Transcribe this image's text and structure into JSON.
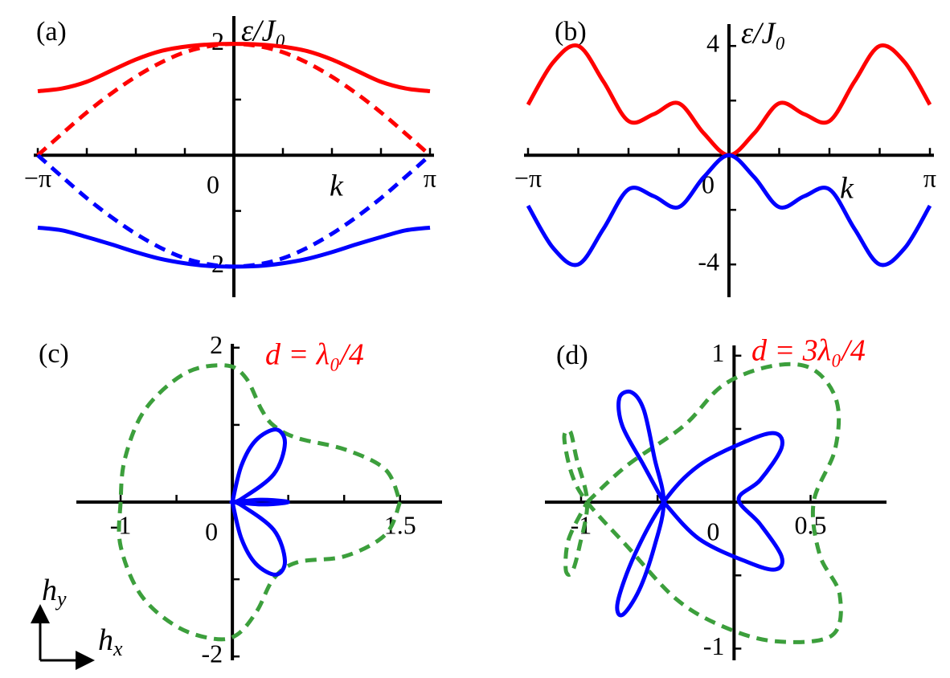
{
  "chart_data": [
    {
      "type": "line",
      "label": "(a)",
      "xlabel": "k",
      "ylabel": "ε/J₀",
      "x": [
        -3.1416,
        -2.7489,
        -2.3562,
        -1.9635,
        -1.5708,
        -1.1781,
        -0.7854,
        -0.3927,
        0,
        0.3927,
        0.7854,
        1.1781,
        1.5708,
        1.9635,
        2.3562,
        2.7489,
        3.1416
      ],
      "xlim": [
        -3.1416,
        3.1416
      ],
      "ylim": [
        -2.55,
        2.5
      ],
      "xticks": [
        {
          "value": -3.1416,
          "label": "−π"
        },
        0,
        {
          "value": 3.1416,
          "label": "π"
        }
      ],
      "xminorticks": [
        -2.3562,
        -1.5708,
        -0.7854,
        0.7854,
        1.5708,
        2.3562
      ],
      "yticks": [
        -2,
        2
      ],
      "yminorticks": [
        -1,
        1
      ],
      "series": [
        {
          "color": "#ff0000",
          "dashed": false,
          "values": [
            1.15,
            1.2,
            1.32,
            1.52,
            1.72,
            1.87,
            1.95,
            1.99,
            2,
            1.99,
            1.95,
            1.87,
            1.72,
            1.52,
            1.32,
            1.2,
            1.15
          ]
        },
        {
          "color": "#ff0000",
          "dashed": true,
          "values": [
            0,
            0.39,
            0.77,
            1.11,
            1.41,
            1.66,
            1.85,
            1.96,
            2,
            1.96,
            1.85,
            1.66,
            1.41,
            1.11,
            0.77,
            0.39,
            0
          ]
        },
        {
          "color": "#0000ff",
          "dashed": false,
          "values": [
            -1.3,
            -1.35,
            -1.47,
            -1.6,
            -1.74,
            -1.86,
            -1.94,
            -1.99,
            -2,
            -1.99,
            -1.94,
            -1.86,
            -1.74,
            -1.6,
            -1.47,
            -1.35,
            -1.3
          ]
        },
        {
          "color": "#0000ff",
          "dashed": true,
          "values": [
            0,
            -0.39,
            -0.77,
            -1.11,
            -1.41,
            -1.66,
            -1.85,
            -1.96,
            -2,
            -1.96,
            -1.85,
            -1.66,
            -1.41,
            -1.11,
            -0.77,
            -0.39,
            0
          ]
        }
      ]
    },
    {
      "type": "line",
      "label": "(b)",
      "xlabel": "k",
      "ylabel": "ε/J₀",
      "x": [
        -3.1416,
        -2.7489,
        -2.3562,
        -1.9635,
        -1.5708,
        -1.1781,
        -0.7854,
        -0.3927,
        0,
        0.3927,
        0.7854,
        1.1781,
        1.5708,
        1.9635,
        2.3562,
        2.7489,
        3.1416
      ],
      "xlim": [
        -3.1416,
        3.1416
      ],
      "ylim": [
        -5.2,
        4.8
      ],
      "xticks": [
        {
          "value": -3.1416,
          "label": "−π"
        },
        0,
        {
          "value": 3.1416,
          "label": "π"
        }
      ],
      "xminorticks": [
        -2.3562,
        -1.5708,
        -0.7854,
        0.7854,
        1.5708,
        2.3562
      ],
      "yticks": [
        -4,
        4
      ],
      "yminorticks": [
        -2,
        2
      ],
      "series": [
        {
          "color": "#ff0000",
          "dashed": false,
          "values": [
            1.85,
            3.4,
            4.0,
            2.7,
            1.25,
            1.5,
            1.9,
            0.8,
            0,
            0.8,
            1.9,
            1.5,
            1.25,
            2.7,
            4.0,
            3.4,
            1.85
          ]
        },
        {
          "color": "#0000ff",
          "dashed": false,
          "values": [
            -1.85,
            -3.4,
            -4.0,
            -2.7,
            -1.25,
            -1.5,
            -1.9,
            -0.8,
            0,
            -0.8,
            -1.9,
            -1.5,
            -1.25,
            -2.7,
            -4.0,
            -3.4,
            -1.85
          ]
        }
      ]
    },
    {
      "type": "curve",
      "label": "(c)",
      "annotation": "d = λ₀/4",
      "annotation_color": "#ff0000",
      "xlim": [
        -1.36,
        1.84
      ],
      "ylim": [
        -2.05,
        2.05
      ],
      "xticks": [
        -1,
        0,
        1.5
      ],
      "xminorticks": [
        -0.5,
        0.5,
        1
      ],
      "yticks": [
        -2,
        2
      ],
      "yminorticks": [
        -1,
        1
      ],
      "series": [
        {
          "color": "#3c9f3c",
          "dashed": true,
          "x": [
            1.5,
            1.37,
            1.01,
            0.58,
            0.37,
            0.22,
            0.04,
            -0.17,
            -0.5,
            -0.82,
            -1,
            -1,
            -0.96,
            -0.78,
            -0.42,
            -0.06,
            0.12,
            0.26,
            0.37,
            0.58,
            1.01,
            1.37,
            1.5
          ],
          "values": [
            0,
            -0.42,
            -0.7,
            -0.78,
            -0.99,
            -1.41,
            -1.72,
            -1.77,
            -1.61,
            -1.2,
            -0.57,
            0,
            0.57,
            1.2,
            1.67,
            1.77,
            1.61,
            1.2,
            0.99,
            0.83,
            0.68,
            0.42,
            0
          ]
        },
        {
          "color": "#0000ff",
          "dashed": false,
          "x": [
            0,
            0.08,
            0.21,
            0.39,
            0.47,
            0.37,
            0.08,
            0,
            0.25,
            0.47,
            0.47,
            0.25,
            0,
            0.08,
            0.37,
            0.47,
            0.39,
            0.21,
            0.08,
            0
          ],
          "values": [
            0,
            0.47,
            0.8,
            0.94,
            0.76,
            0.36,
            0.04,
            0,
            0.03,
            0.01,
            -0.01,
            -0.03,
            0,
            -0.04,
            -0.36,
            -0.76,
            -0.94,
            -0.8,
            -0.47,
            0
          ]
        }
      ]
    },
    {
      "type": "curve",
      "label": "(d)",
      "annotation": "d = 3λ₀/4",
      "annotation_color": "#ff0000",
      "xlim": [
        -1.21,
        0.97
      ],
      "ylim": [
        -1.08,
        1.07
      ],
      "xticks": [
        -1,
        0,
        0.5
      ],
      "xminorticks": [
        -0.5
      ],
      "yticks": [
        -1,
        1
      ],
      "yminorticks": [
        -0.5,
        0.5
      ],
      "series": [
        {
          "color": "#3c9f3c",
          "dashed": true,
          "x": [
            -0.96,
            -0.7,
            -0.33,
            -0.07,
            0.25,
            0.51,
            0.67,
            0.66,
            0.52,
            0.56,
            0.69,
            0.64,
            0.27,
            -0.07,
            -0.38,
            -0.7,
            -0.96,
            -1.06,
            -1.11,
            -1.07,
            -1.03,
            -0.96,
            -1.01,
            -1.06,
            -1.1,
            -1.08,
            -0.96
          ],
          "values": [
            0,
            0.25,
            0.52,
            0.8,
            0.93,
            0.91,
            0.69,
            0.36,
            0,
            -0.36,
            -0.63,
            -0.91,
            -0.95,
            -0.85,
            -0.66,
            -0.3,
            0,
            0.19,
            0.44,
            0.48,
            0.3,
            0,
            -0.3,
            -0.48,
            -0.46,
            -0.25,
            0
          ]
        },
        {
          "color": "#0000ff",
          "dashed": false,
          "x": [
            -0.46,
            -0.59,
            -0.73,
            -0.75,
            -0.67,
            -0.59,
            -0.52,
            -0.46,
            -0.52,
            -0.62,
            -0.73,
            -0.76,
            -0.65,
            -0.46,
            -0.23,
            0.09,
            0.27,
            0.31,
            0.17,
            0.03,
            0.17,
            0.31,
            0.27,
            0.09,
            -0.23,
            -0.46
          ],
          "values": [
            0,
            0.25,
            0.52,
            0.71,
            0.75,
            0.63,
            0.3,
            0,
            -0.3,
            -0.6,
            -0.77,
            -0.68,
            -0.36,
            0,
            0.25,
            0.42,
            0.47,
            0.37,
            0.15,
            0.02,
            -0.15,
            -0.37,
            -0.46,
            -0.41,
            -0.25,
            0
          ]
        }
      ]
    }
  ],
  "arrows": [
    {
      "main": "h",
      "sub": "y"
    },
    {
      "main": "h",
      "sub": "x"
    }
  ]
}
